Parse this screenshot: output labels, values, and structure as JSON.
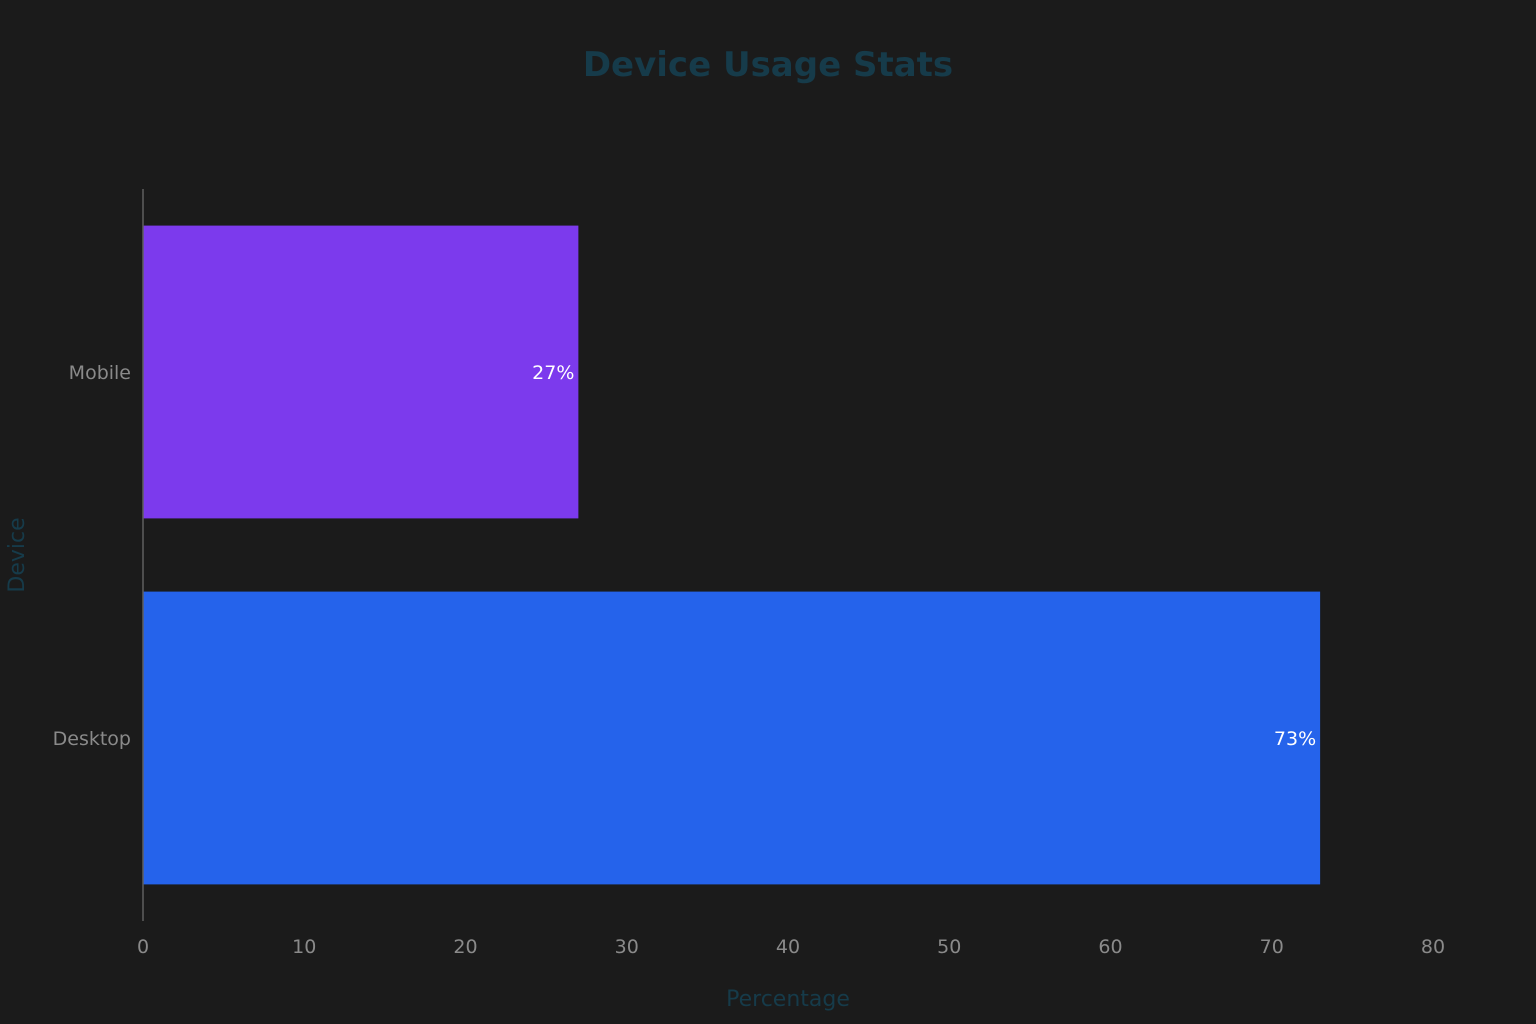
{
  "chart_data": {
    "type": "bar",
    "orientation": "horizontal",
    "title": "Device Usage Stats",
    "xlabel": "Percentage",
    "ylabel": "Device",
    "categories": [
      "Mobile",
      "Desktop"
    ],
    "values": [
      27,
      73
    ],
    "data_labels": [
      "27%",
      "73%"
    ],
    "colors": [
      "#7c3aed",
      "#2563eb"
    ],
    "xlim": [
      0,
      80
    ],
    "xticks": [
      0,
      10,
      20,
      30,
      40,
      50,
      60,
      70,
      80
    ],
    "grid": false,
    "legend": "none",
    "background": "#1b1b1b"
  }
}
